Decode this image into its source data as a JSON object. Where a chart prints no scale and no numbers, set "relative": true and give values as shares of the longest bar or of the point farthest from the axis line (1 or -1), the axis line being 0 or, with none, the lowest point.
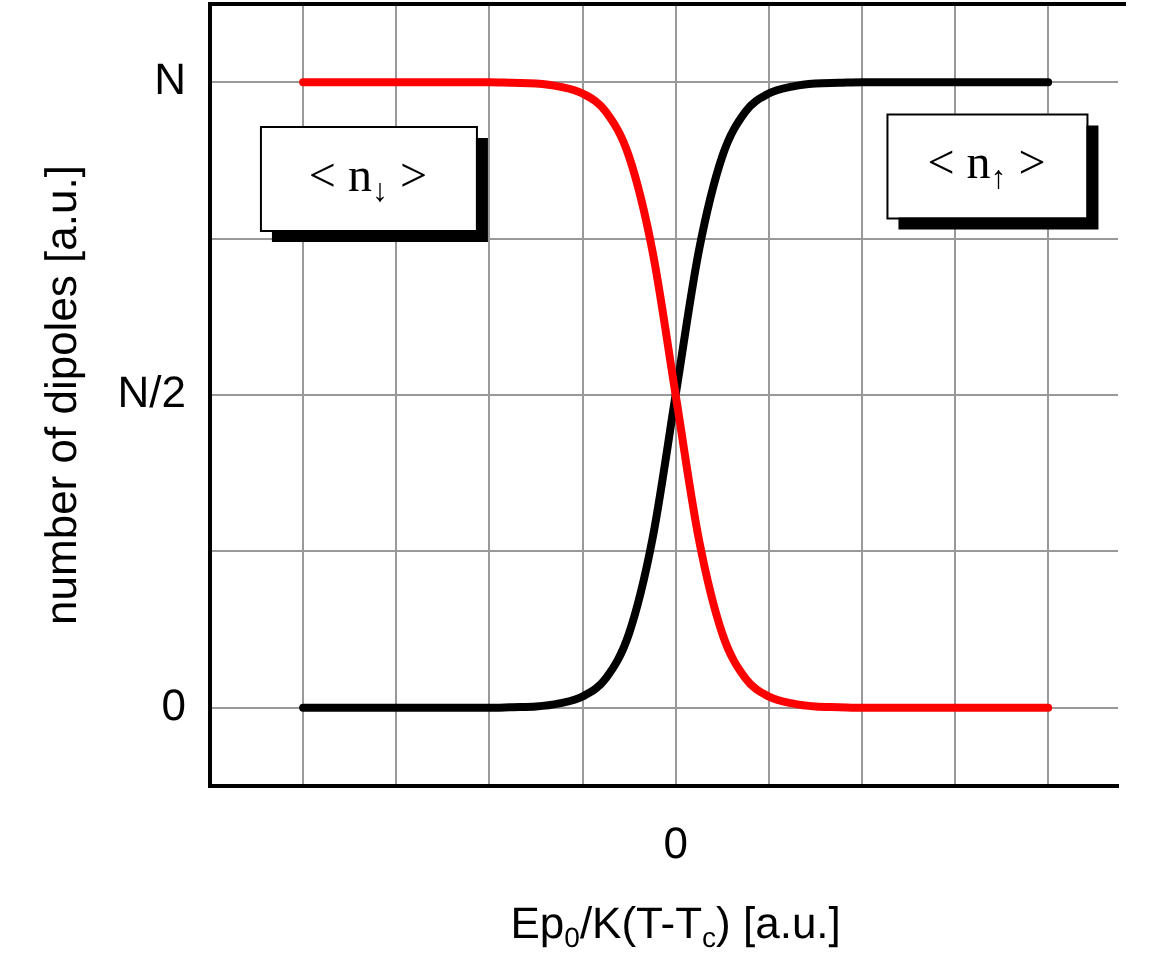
{
  "chart_data": {
    "type": "line",
    "relative": true,
    "xlabel": "Ep$_{0}$/K(T-T$_{c}$) [a.u.]",
    "ylabel": "number of dipoles [a.u.]",
    "categories": [
      null,
      null,
      null,
      null,
      null,
      null,
      null,
      null,
      null,
      null,
      null,
      null,
      null,
      null,
      null,
      null,
      null,
      null,
      null,
      null,
      null,
      null,
      null,
      null,
      null,
      null,
      null,
      null,
      null,
      null,
      null,
      null,
      null,
      null,
      null,
      null,
      null,
      null,
      null,
      null
    ],
    "series": [
      {
        "name": "< n$_{↓}$ >",
        "color": "#ff0000",
        "values": [
          null,
          null,
          null,
          null,
          1,
          1,
          1,
          1,
          1,
          1,
          1,
          1,
          1,
          0.999,
          0.998,
          0.993,
          0.982,
          0.953,
          0.881,
          0.731,
          0.5,
          0.269,
          0.119,
          0.047,
          0.018,
          0.007,
          0.002,
          0.001,
          0,
          0,
          0,
          0,
          0,
          0,
          0,
          0,
          0,
          null,
          null,
          null
        ]
      },
      {
        "name": "< n$_{↑}$ >",
        "color": "#000000",
        "values": [
          null,
          null,
          null,
          null,
          0,
          0,
          0,
          0,
          0,
          0,
          0,
          0,
          0,
          0.001,
          0.002,
          0.007,
          0.018,
          0.047,
          0.119,
          0.269,
          0.5,
          0.731,
          0.881,
          0.953,
          0.982,
          0.993,
          0.998,
          0.999,
          1,
          1,
          1,
          1,
          1,
          1,
          1,
          1,
          1,
          null,
          null,
          null
        ]
      }
    ],
    "annotations": [
      "0",
      "0",
      "N/2",
      "N"
    ],
    "grid": true,
    "legend": false,
    "marker": "none",
    "line_style": "solid"
  }
}
